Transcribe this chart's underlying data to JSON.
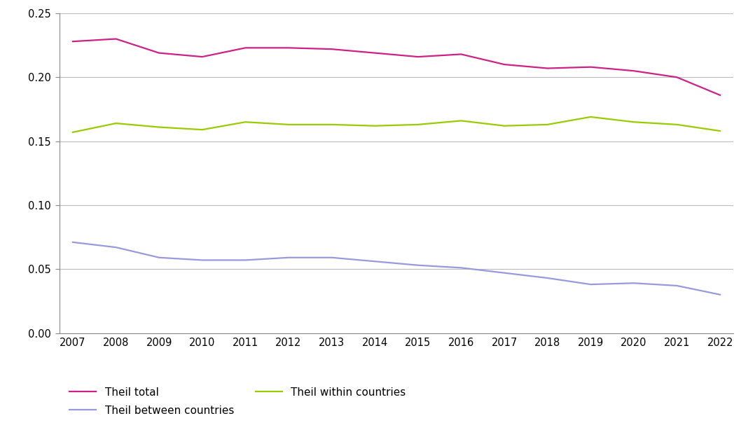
{
  "years": [
    2007,
    2008,
    2009,
    2010,
    2011,
    2012,
    2013,
    2014,
    2015,
    2016,
    2017,
    2018,
    2019,
    2020,
    2021,
    2022
  ],
  "theil_total": [
    0.228,
    0.23,
    0.219,
    0.216,
    0.223,
    0.223,
    0.222,
    0.219,
    0.216,
    0.218,
    0.21,
    0.207,
    0.208,
    0.205,
    0.2,
    0.186
  ],
  "theil_within": [
    0.157,
    0.164,
    0.161,
    0.159,
    0.165,
    0.163,
    0.163,
    0.162,
    0.163,
    0.166,
    0.162,
    0.163,
    0.169,
    0.165,
    0.163,
    0.158
  ],
  "theil_between": [
    0.071,
    0.067,
    0.059,
    0.057,
    0.057,
    0.059,
    0.059,
    0.056,
    0.053,
    0.051,
    0.047,
    0.043,
    0.038,
    0.039,
    0.037,
    0.03
  ],
  "color_total": "#cc2288",
  "color_within": "#99cc00",
  "color_between": "#9999dd",
  "ylim": [
    0.0,
    0.25
  ],
  "yticks": [
    0.0,
    0.05,
    0.1,
    0.15,
    0.2,
    0.25
  ],
  "legend_total": "Theil total",
  "legend_within": "Theil within countries",
  "legend_between": "Theil between countries",
  "line_width": 1.6,
  "background_color": "#ffffff",
  "grid_color": "#bbbbbb",
  "spine_color": "#888888"
}
